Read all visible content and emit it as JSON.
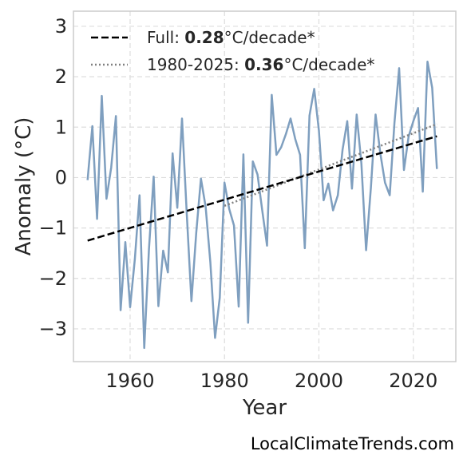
{
  "chart_data": {
    "type": "line",
    "xlabel": "Year",
    "ylabel": "Anomaly (°C)",
    "xlim": [
      1948,
      2029
    ],
    "ylim": [
      -3.65,
      3.3
    ],
    "x_ticks": [
      1960,
      1980,
      2000,
      2020
    ],
    "y_ticks": [
      -3,
      -2,
      -1,
      0,
      1,
      2,
      3
    ],
    "grid": true,
    "legend_position": "top-left",
    "colors": {
      "series": "#7f9fbf",
      "full_trend": "#000000",
      "recent_trend": "#808080",
      "grid": "#dddddd",
      "frame": "#cccccc"
    },
    "series": [
      {
        "x": [
          1951,
          1952,
          1953,
          1954,
          1955,
          1956,
          1957,
          1958,
          1959,
          1960,
          1961,
          1962,
          1963,
          1964,
          1965,
          1966,
          1967,
          1968,
          1969,
          1970,
          1971,
          1972,
          1973,
          1974,
          1975,
          1976,
          1977,
          1978,
          1979,
          1980,
          1981,
          1982,
          1983,
          1984,
          1985,
          1986,
          1987,
          1988,
          1989,
          1990,
          1991,
          1992,
          1993,
          1994,
          1995,
          1996,
          1997,
          1998,
          1999,
          2000,
          2001,
          2002,
          2003,
          2004,
          2005,
          2006,
          2007,
          2008,
          2009,
          2010,
          2011,
          2012,
          2013,
          2014,
          2015,
          2016,
          2017,
          2018,
          2019,
          2020,
          2021,
          2022,
          2023,
          2024,
          2025
        ],
        "y": [
          -0.05,
          1.02,
          -0.82,
          1.62,
          -0.42,
          0.2,
          1.22,
          -2.63,
          -1.28,
          -2.57,
          -1.62,
          -0.35,
          -3.38,
          -1.42,
          0.02,
          -2.55,
          -1.45,
          -1.88,
          0.48,
          -0.6,
          1.17,
          -0.7,
          -2.45,
          -1.1,
          -0.02,
          -0.58,
          -1.68,
          -3.18,
          -2.38,
          -0.1,
          -0.62,
          -0.95,
          -2.56,
          0.46,
          -2.88,
          0.32,
          0.06,
          -0.65,
          -1.35,
          1.64,
          0.45,
          0.6,
          0.86,
          1.17,
          0.76,
          0.45,
          -1.4,
          1.23,
          1.76,
          0.93,
          -0.45,
          -0.12,
          -0.65,
          -0.35,
          0.55,
          1.12,
          -0.22,
          1.25,
          0.28,
          -1.44,
          -0.2,
          1.25,
          0.48,
          -0.1,
          -0.35,
          1.08,
          2.17,
          0.15,
          0.82,
          1.12,
          1.38,
          -0.28,
          2.3,
          1.78,
          0.17
        ]
      }
    ],
    "trends": [
      {
        "legend_prefix": "Full: ",
        "rate": "0.28",
        "suffix": "°C/decade*",
        "x": [
          1951,
          2025
        ],
        "y": [
          -1.25,
          0.82
        ],
        "style": "dashed"
      },
      {
        "legend_prefix": "1980-2025: ",
        "rate": "0.36",
        "suffix": "°C/decade*",
        "x": [
          1980,
          2025
        ],
        "y": [
          -0.56,
          1.06
        ],
        "style": "dotted"
      }
    ]
  },
  "source_credit": "LocalClimateTrends.com"
}
